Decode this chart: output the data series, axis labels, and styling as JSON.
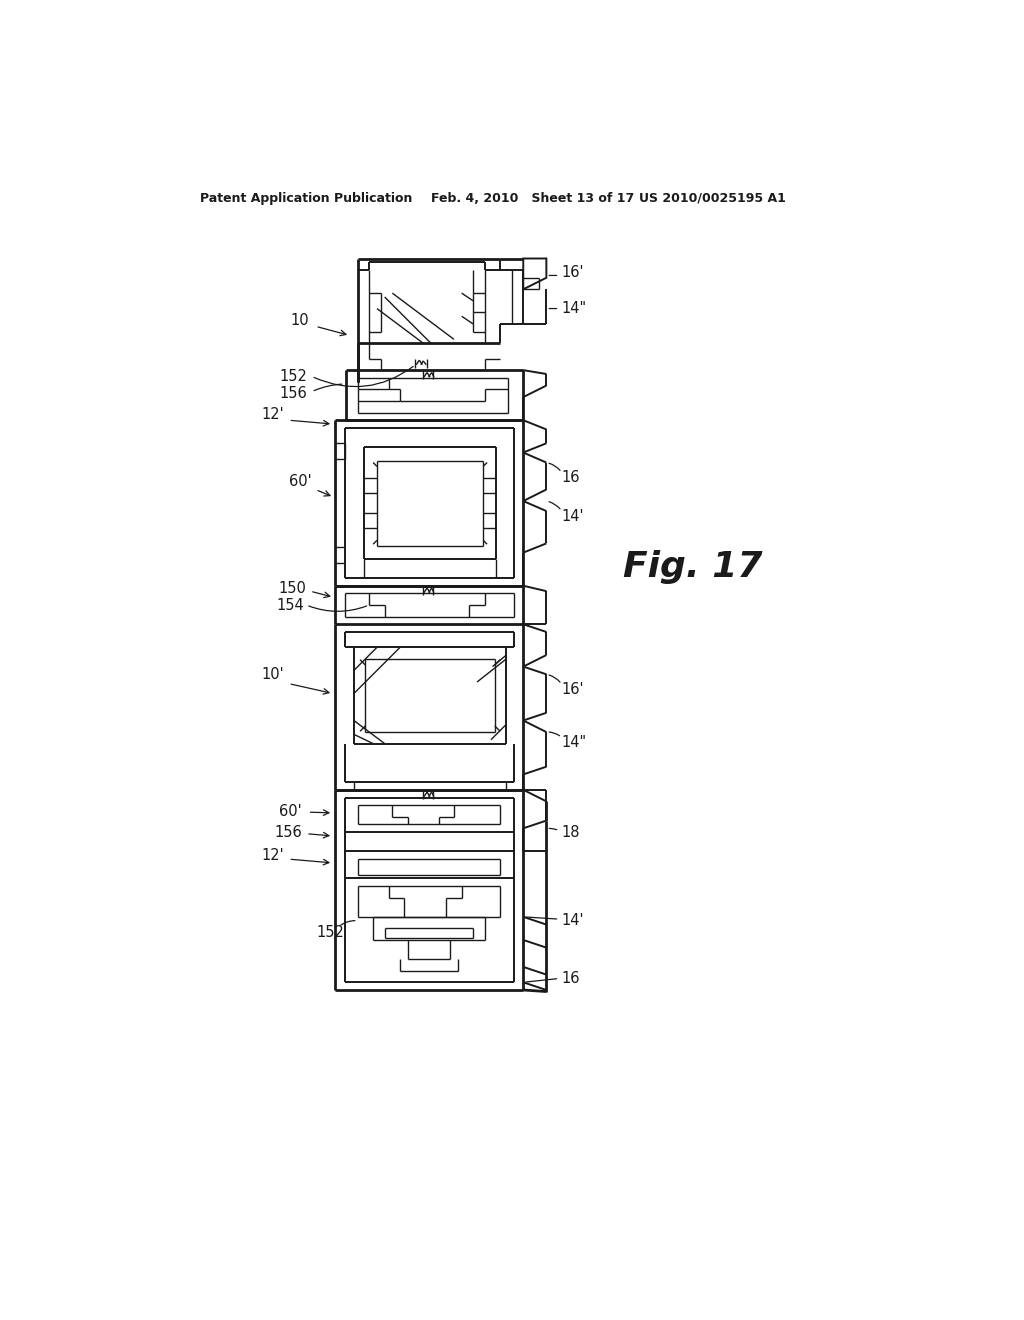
{
  "title_left": "Patent Application Publication",
  "title_mid": "Feb. 4, 2010   Sheet 13 of 17",
  "title_right": "US 2010/0025195 A1",
  "fig_label": "Fig. 17",
  "background_color": "#ffffff",
  "line_color": "#1a1a1a",
  "gray_fill": "#c8c8c8",
  "draw_scale": 1.0
}
